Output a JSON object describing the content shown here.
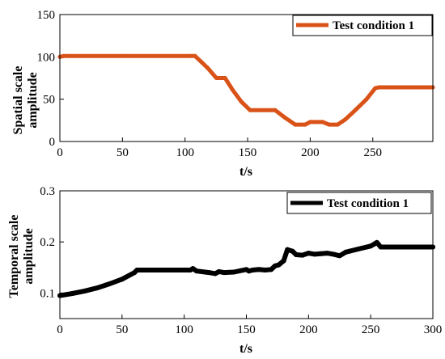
{
  "chart_data": [
    {
      "type": "line",
      "xlabel": "t/s",
      "ylabel_lines": [
        "Spatial scale",
        "amplitude"
      ],
      "xlim": [
        0,
        298
      ],
      "ylim": [
        0,
        150
      ],
      "xticks": [
        0,
        50,
        100,
        150,
        200,
        250
      ],
      "yticks": [
        0,
        50,
        100,
        150
      ],
      "grid": false,
      "legend_position": "top-right",
      "series": [
        {
          "name": "Test condition 1",
          "color": "#d95319",
          "x": [
            0,
            3,
            50,
            105,
            108,
            113,
            118,
            125,
            132,
            138,
            145,
            152,
            172,
            180,
            188,
            196,
            200,
            210,
            215,
            222,
            228,
            236,
            245,
            252,
            255,
            298
          ],
          "y": [
            100,
            101,
            101,
            101,
            101,
            94,
            87,
            75,
            75,
            61,
            47,
            37,
            37,
            28,
            20,
            20,
            23,
            23,
            20,
            20,
            26,
            37,
            50,
            63,
            64,
            64
          ]
        }
      ]
    },
    {
      "type": "line",
      "xlabel": "t/s",
      "ylabel_lines": [
        "Temporal scale",
        "amplitude"
      ],
      "xlim": [
        0,
        300
      ],
      "ylim": [
        0.05,
        0.3
      ],
      "xticks": [
        0,
        50,
        100,
        150,
        200,
        250,
        300
      ],
      "yticks": [
        0.1,
        0.2,
        0.3
      ],
      "grid": false,
      "legend_position": "top-right",
      "series": [
        {
          "name": "Test condition 1",
          "color": "#000000",
          "x": [
            0,
            5,
            10,
            20,
            30,
            40,
            50,
            60,
            62,
            100,
            105,
            107,
            110,
            120,
            125,
            128,
            132,
            140,
            150,
            152,
            155,
            160,
            165,
            170,
            173,
            176,
            180,
            183,
            187,
            190,
            195,
            200,
            205,
            210,
            215,
            220,
            225,
            230,
            240,
            250,
            253,
            255,
            258,
            260,
            270,
            300
          ],
          "y": [
            0.095,
            0.097,
            0.099,
            0.104,
            0.11,
            0.118,
            0.127,
            0.14,
            0.145,
            0.145,
            0.145,
            0.148,
            0.143,
            0.14,
            0.138,
            0.142,
            0.14,
            0.141,
            0.146,
            0.143,
            0.145,
            0.146,
            0.145,
            0.146,
            0.153,
            0.155,
            0.163,
            0.185,
            0.182,
            0.175,
            0.174,
            0.178,
            0.176,
            0.177,
            0.178,
            0.176,
            0.173,
            0.18,
            0.186,
            0.192,
            0.196,
            0.199,
            0.19,
            0.19,
            0.19,
            0.19
          ]
        }
      ]
    }
  ]
}
